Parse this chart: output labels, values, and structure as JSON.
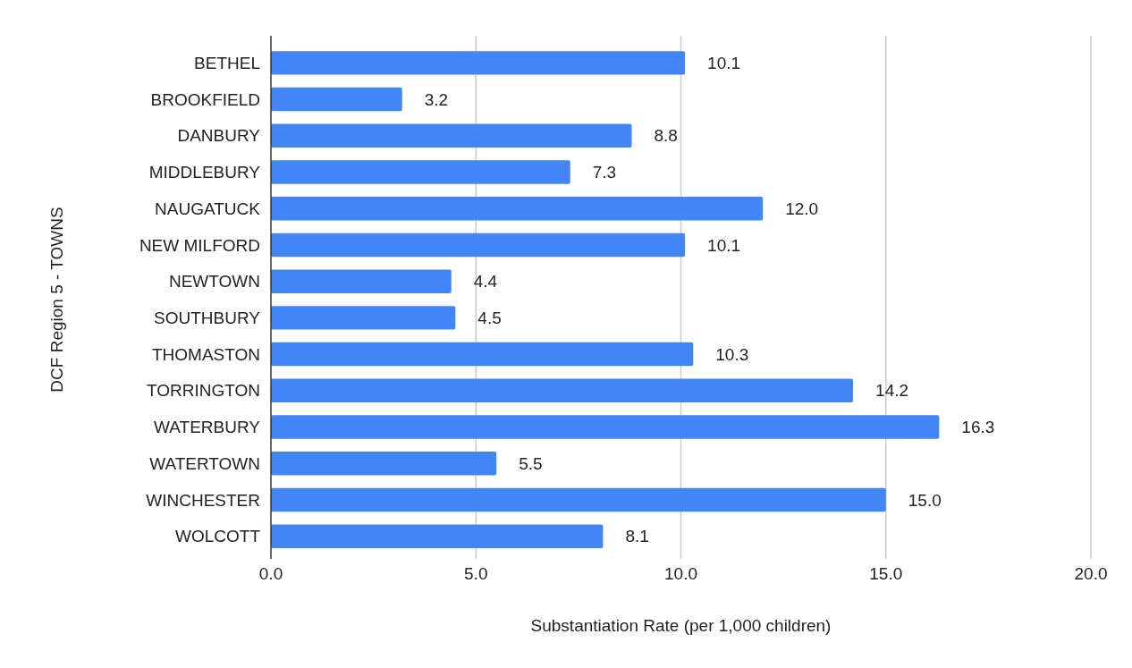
{
  "chart_data": {
    "type": "bar",
    "orientation": "horizontal",
    "xlabel": "Substantiation Rate (per 1,000 children)",
    "ylabel": "DCF Region 5 - TOWNS",
    "categories": [
      "BETHEL",
      "BROOKFIELD",
      "DANBURY",
      "MIDDLEBURY",
      "NAUGATUCK",
      "NEW MILFORD",
      "NEWTOWN",
      "SOUTHBURY",
      "THOMASTON",
      "TORRINGTON",
      "WATERBURY",
      "WATERTOWN",
      "WINCHESTER",
      "WOLCOTT"
    ],
    "values": [
      10.1,
      3.2,
      8.8,
      7.3,
      12.0,
      10.1,
      4.4,
      4.5,
      10.3,
      14.2,
      16.3,
      5.5,
      15.0,
      8.1
    ],
    "value_labels": [
      "10.1",
      "3.2",
      "8.8",
      "7.3",
      "12.0",
      "10.1",
      "4.4",
      "4.5",
      "10.3",
      "14.2",
      "16.3",
      "5.5",
      "15.0",
      "8.1"
    ],
    "color": "#4285f4",
    "xlim": [
      0,
      20
    ],
    "xticks": [
      {
        "value": 0,
        "label": "0.0"
      },
      {
        "value": 5,
        "label": "5.0"
      },
      {
        "value": 10,
        "label": "10.0"
      },
      {
        "value": 15,
        "label": "15.0"
      },
      {
        "value": 20,
        "label": "20.0"
      }
    ],
    "grid": "x"
  }
}
